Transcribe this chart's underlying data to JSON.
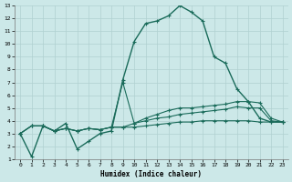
{
  "xlabel": "Humidex (Indice chaleur)",
  "bg_color": "#cce8e8",
  "grid_color": "#b0d0d0",
  "line_color": "#1a6b5a",
  "xlim": [
    -0.5,
    23.5
  ],
  "ylim": [
    1,
    13
  ],
  "xticks": [
    0,
    1,
    2,
    3,
    4,
    5,
    6,
    7,
    8,
    9,
    10,
    11,
    12,
    13,
    14,
    15,
    16,
    17,
    18,
    19,
    20,
    21,
    22,
    23
  ],
  "yticks": [
    1,
    2,
    3,
    4,
    5,
    6,
    7,
    8,
    9,
    10,
    11,
    12,
    13
  ],
  "series": [
    [
      3.0,
      1.2,
      3.6,
      3.2,
      3.8,
      1.8,
      2.4,
      3.0,
      3.2,
      7.2,
      10.2,
      11.6,
      11.8,
      12.2,
      13.0,
      12.5,
      11.8,
      9.0,
      8.5,
      6.5,
      5.5,
      4.2,
      3.9,
      3.9
    ],
    [
      3.0,
      3.6,
      3.6,
      3.2,
      3.4,
      3.2,
      3.4,
      3.3,
      3.5,
      7.0,
      3.8,
      4.2,
      4.5,
      4.8,
      5.0,
      5.0,
      5.1,
      5.2,
      5.3,
      5.5,
      5.5,
      5.4,
      4.2,
      3.9
    ],
    [
      3.0,
      3.6,
      3.6,
      3.2,
      3.4,
      3.2,
      3.4,
      3.3,
      3.5,
      3.5,
      3.8,
      4.0,
      4.2,
      4.3,
      4.5,
      4.6,
      4.7,
      4.8,
      4.9,
      5.1,
      5.0,
      5.0,
      4.0,
      3.9
    ],
    [
      3.0,
      3.6,
      3.6,
      3.2,
      3.4,
      3.2,
      3.4,
      3.3,
      3.5,
      3.5,
      3.5,
      3.6,
      3.7,
      3.8,
      3.9,
      3.9,
      4.0,
      4.0,
      4.0,
      4.0,
      4.0,
      3.9,
      3.9,
      3.9
    ]
  ],
  "linestyles": [
    "-",
    "-",
    "-",
    "-"
  ],
  "linewidths": [
    1.0,
    0.8,
    0.8,
    0.8
  ]
}
